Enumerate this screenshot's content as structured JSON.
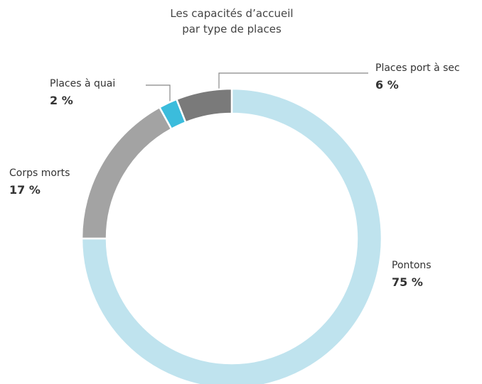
{
  "chart_data": {
    "type": "donut",
    "title": [
      "Les capacités d’accueil",
      "par type de places"
    ],
    "categories": [
      "Pontons",
      "Corps morts",
      "Places à quai",
      "Places port à sec"
    ],
    "values": [
      75,
      17,
      2,
      6
    ],
    "value_labels": [
      "75 %",
      "17 %",
      "2 %",
      "6 %"
    ],
    "colors": [
      "#bfe3ee",
      "#a3a3a3",
      "#3bbcdc",
      "#7a7a7a"
    ]
  }
}
